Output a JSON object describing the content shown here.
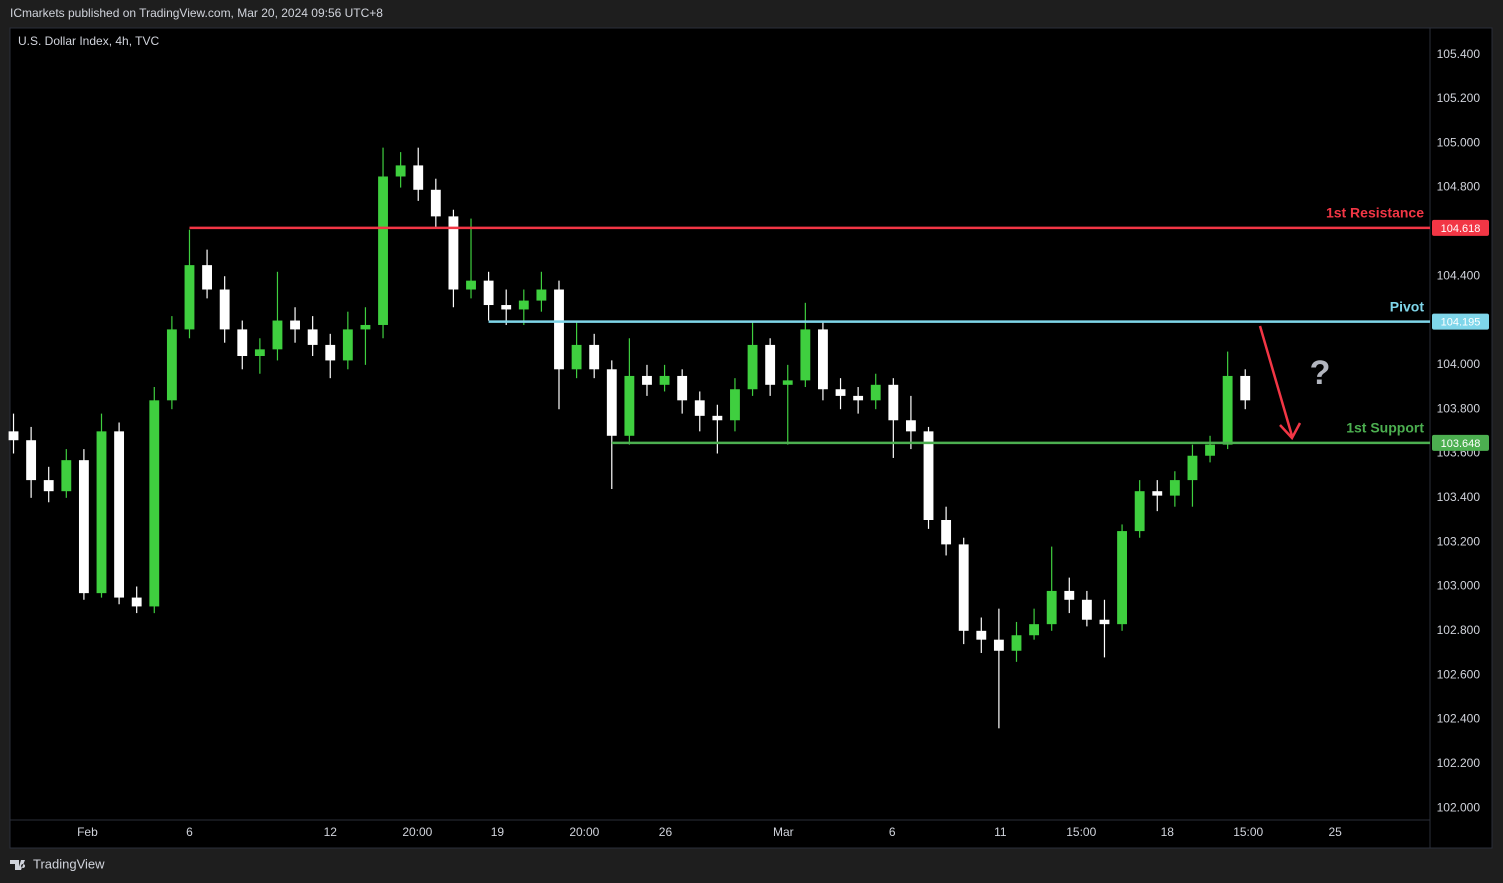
{
  "header": {
    "publisher": "ICmarkets published on TradingView.com, Mar 20, 2024 09:56 UTC+8"
  },
  "footer": {
    "brand": "TradingView"
  },
  "chart_data": {
    "type": "candlestick",
    "title": "U.S. Dollar Index, 4h, TVC",
    "up_color": "#3fcf3f",
    "down_color": "#ffffff",
    "grid": false,
    "xlim": [
      -0.2,
      80.5
    ],
    "xticks": [
      {
        "value": 4.2,
        "label": "Feb"
      },
      {
        "value": 10,
        "label": "6"
      },
      {
        "value": 18,
        "label": "12"
      },
      {
        "value": 22.95,
        "label": "20:00"
      },
      {
        "value": 27.5,
        "label": "19"
      },
      {
        "value": 32.44,
        "label": "20:00"
      },
      {
        "value": 37.05,
        "label": "26"
      },
      {
        "value": 43.75,
        "label": "Mar"
      },
      {
        "value": 49.94,
        "label": "6"
      },
      {
        "value": 56.08,
        "label": "11"
      },
      {
        "value": 60.68,
        "label": "15:00"
      },
      {
        "value": 65.57,
        "label": "18"
      },
      {
        "value": 70.17,
        "label": "15:00"
      },
      {
        "value": 75.11,
        "label": "25"
      }
    ],
    "ylim": [
      101.82,
      105.52
    ],
    "yticks": [
      {
        "value": 102.0,
        "label": "102.000"
      },
      {
        "value": 102.2,
        "label": "102.200"
      },
      {
        "value": 102.4,
        "label": "102.400"
      },
      {
        "value": 102.6,
        "label": "102.600"
      },
      {
        "value": 102.8,
        "label": "102.800"
      },
      {
        "value": 103.0,
        "label": "103.000"
      },
      {
        "value": 103.2,
        "label": "103.200"
      },
      {
        "value": 103.4,
        "label": "103.400"
      },
      {
        "value": 103.6,
        "label": "103.600"
      },
      {
        "value": 103.8,
        "label": "103.800"
      },
      {
        "value": 104.0,
        "label": "104.000"
      },
      {
        "value": 104.2,
        "label": "104.200"
      },
      {
        "value": 104.4,
        "label": "104.400"
      },
      {
        "value": 104.6,
        "label": "104.600"
      },
      {
        "value": 104.8,
        "label": "104.800"
      },
      {
        "value": 105.0,
        "label": "105.000"
      },
      {
        "value": 105.2,
        "label": "105.200"
      },
      {
        "value": 105.4,
        "label": "105.400"
      }
    ],
    "open": [
      103.7,
      103.66,
      103.48,
      103.43,
      103.57,
      102.97,
      103.7,
      102.95,
      102.91,
      103.84,
      104.16,
      104.45,
      104.34,
      104.16,
      104.04,
      104.07,
      104.2,
      104.16,
      104.09,
      104.02,
      104.16,
      104.18,
      104.85,
      104.9,
      104.79,
      104.67,
      104.34,
      104.38,
      104.27,
      104.25,
      104.29,
      104.34,
      103.98,
      104.09,
      103.98,
      103.68,
      103.95,
      103.91,
      103.95,
      103.84,
      103.77,
      103.75,
      103.89,
      104.09,
      103.91,
      103.93,
      104.16,
      103.89,
      103.86,
      103.84,
      103.91,
      103.75,
      103.7,
      103.3,
      103.19,
      102.8,
      102.76,
      102.71,
      102.78,
      102.83,
      102.98,
      102.94,
      102.85,
      102.83,
      103.25,
      103.43,
      103.41,
      103.48,
      103.59,
      103.64,
      103.95
    ],
    "high": [
      103.78,
      103.72,
      103.54,
      103.62,
      103.62,
      103.78,
      103.74,
      103.0,
      103.9,
      104.22,
      104.61,
      104.52,
      104.4,
      104.2,
      104.12,
      104.42,
      104.26,
      104.22,
      104.14,
      104.24,
      104.26,
      104.98,
      104.96,
      104.98,
      104.84,
      104.7,
      104.66,
      104.42,
      104.34,
      104.34,
      104.42,
      104.38,
      104.2,
      104.14,
      104.02,
      104.12,
      104.0,
      104.0,
      103.98,
      103.88,
      103.82,
      103.94,
      104.2,
      104.12,
      104.0,
      104.28,
      104.2,
      103.94,
      103.9,
      103.96,
      103.94,
      103.86,
      103.72,
      103.36,
      103.22,
      102.86,
      102.9,
      102.84,
      102.9,
      103.18,
      103.04,
      102.98,
      102.94,
      103.28,
      103.48,
      103.48,
      103.52,
      103.64,
      103.68,
      104.06,
      103.98
    ],
    "low": [
      103.6,
      103.4,
      103.38,
      103.4,
      102.94,
      102.95,
      102.92,
      102.88,
      102.88,
      103.8,
      104.12,
      104.3,
      104.1,
      103.98,
      103.96,
      104.02,
      104.1,
      104.04,
      103.94,
      103.98,
      104.0,
      104.12,
      104.8,
      104.74,
      104.62,
      104.26,
      104.3,
      104.2,
      104.18,
      104.18,
      104.24,
      103.8,
      103.94,
      103.94,
      103.44,
      103.64,
      103.86,
      103.88,
      103.78,
      103.7,
      103.6,
      103.7,
      103.86,
      103.86,
      103.64,
      103.9,
      103.84,
      103.8,
      103.78,
      103.8,
      103.58,
      103.62,
      103.26,
      103.14,
      102.74,
      102.7,
      102.36,
      102.66,
      102.76,
      102.8,
      102.88,
      102.82,
      102.68,
      102.8,
      103.22,
      103.34,
      103.36,
      103.36,
      103.56,
      103.62,
      103.8
    ],
    "close": [
      103.66,
      103.48,
      103.43,
      103.57,
      102.97,
      103.7,
      102.95,
      102.91,
      103.84,
      104.16,
      104.45,
      104.34,
      104.16,
      104.04,
      104.07,
      104.2,
      104.16,
      104.09,
      104.02,
      104.16,
      104.18,
      104.85,
      104.9,
      104.79,
      104.67,
      104.34,
      104.38,
      104.27,
      104.25,
      104.29,
      104.34,
      103.98,
      104.09,
      103.98,
      103.68,
      103.95,
      103.91,
      103.95,
      103.84,
      103.77,
      103.75,
      103.89,
      104.09,
      103.91,
      103.93,
      104.16,
      103.89,
      103.86,
      103.84,
      103.91,
      103.75,
      103.7,
      103.3,
      103.19,
      102.8,
      102.76,
      102.71,
      102.78,
      102.83,
      102.98,
      102.94,
      102.85,
      102.83,
      103.25,
      103.43,
      103.41,
      103.48,
      103.59,
      103.64,
      103.95,
      103.84
    ],
    "levels": [
      {
        "name": "1st Resistance",
        "value": 104.618,
        "color": "#f23645",
        "x_start": 10
      },
      {
        "name": "Pivot",
        "value": 104.195,
        "color": "#7fd6ea",
        "x_start": 27
      },
      {
        "name": "1st Support",
        "value": 103.648,
        "color": "#4caf50",
        "x_start": 34
      }
    ],
    "annotation": "?"
  }
}
